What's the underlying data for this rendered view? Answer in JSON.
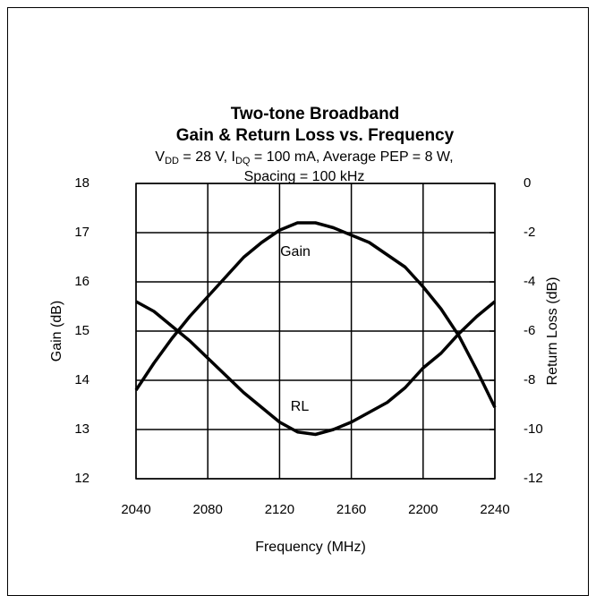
{
  "chart_data": {
    "type": "line",
    "title": [
      "Two-tone Broadband",
      "Gain & Return Loss vs. Frequency"
    ],
    "subtitle": [
      [
        "V",
        "DD",
        " = 28 V, I",
        "DQ",
        " = 100 mA, Average PEP = 8 W,"
      ],
      "Spacing = 100 kHz"
    ],
    "xlabel": "Frequency (MHz)",
    "ylabel": "Gain (dB)",
    "y2label": "Return Loss (dB)",
    "annotations": [
      "Gain",
      "RL"
    ],
    "x": [
      2040,
      2050,
      2060,
      2070,
      2080,
      2090,
      2100,
      2110,
      2120,
      2130,
      2140,
      2150,
      2160,
      2170,
      2180,
      2190,
      2200,
      2210,
      2220,
      2230,
      2240
    ],
    "series": [
      {
        "name": "Gain",
        "color": "#000000",
        "values": [
          13.8,
          14.35,
          14.85,
          15.3,
          15.7,
          16.1,
          16.5,
          16.8,
          17.05,
          17.2,
          17.2,
          17.1,
          16.95,
          16.8,
          16.55,
          16.3,
          15.9,
          15.45,
          14.9,
          14.2,
          13.45
        ]
      },
      {
        "name": "RL",
        "color": "#000000",
        "axis": "y2",
        "values": [
          -4.8,
          -5.2,
          -5.8,
          -6.4,
          -7.1,
          -7.8,
          -8.5,
          -9.1,
          -9.7,
          -10.1,
          -10.2,
          -10.0,
          -9.7,
          -9.3,
          -8.9,
          -8.3,
          -7.5,
          -6.9,
          -6.1,
          -5.4,
          -4.8
        ]
      }
    ],
    "xlim": [
      2040,
      2240
    ],
    "xticks": [
      2040,
      2080,
      2120,
      2160,
      2200,
      2240
    ],
    "ylim": [
      12,
      18
    ],
    "yticks": [
      12,
      13,
      14,
      15,
      16,
      17,
      18
    ],
    "y2lim": [
      -12,
      0
    ],
    "y2ticks": [
      -12,
      -10,
      -8,
      -6,
      -4,
      -2,
      0
    ],
    "grid": true
  }
}
